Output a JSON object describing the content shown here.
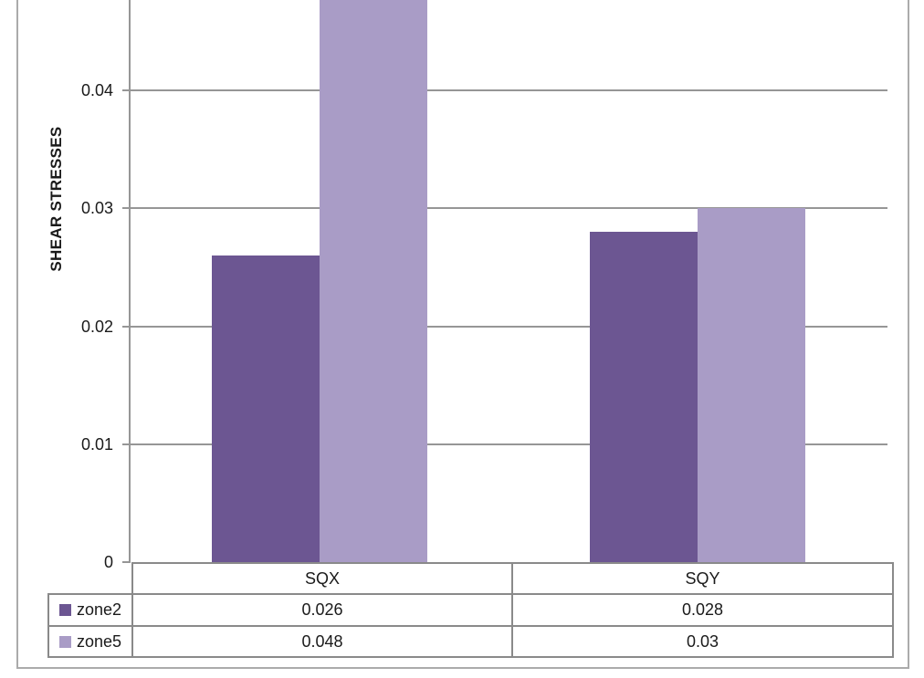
{
  "chart_data": {
    "type": "bar",
    "title": "",
    "xlabel": "",
    "ylabel": "SHEAR STRESSES",
    "categories": [
      "SQX",
      "SQY"
    ],
    "series": [
      {
        "name": "zone2",
        "color": "#6C5692",
        "values": [
          0.026,
          0.028
        ],
        "value_labels": [
          "0.026",
          "0.028"
        ]
      },
      {
        "name": "zone5",
        "color": "#A99CC6",
        "values": [
          0.048,
          0.03
        ],
        "value_labels": [
          "0.048",
          "0.03"
        ]
      }
    ],
    "y_axis": {
      "ticks": [
        0,
        0.01,
        0.02,
        0.03,
        0.04
      ],
      "tick_labels": [
        "0",
        "0.01",
        "0.02",
        "0.03",
        "0.04"
      ],
      "visible_range": [
        0,
        0.0477
      ],
      "grid": true,
      "note_top_cropped": "tallest bar (0.048) extends past the cropped top edge"
    },
    "legend_position": "data-table-left-keys",
    "colors": {
      "gridline": "#969696",
      "axis": "#969696",
      "table_border": "#8A8A8A",
      "outer_border": "#ABABAB",
      "text": "#1A1A1A",
      "background": "#FFFFFF"
    }
  }
}
